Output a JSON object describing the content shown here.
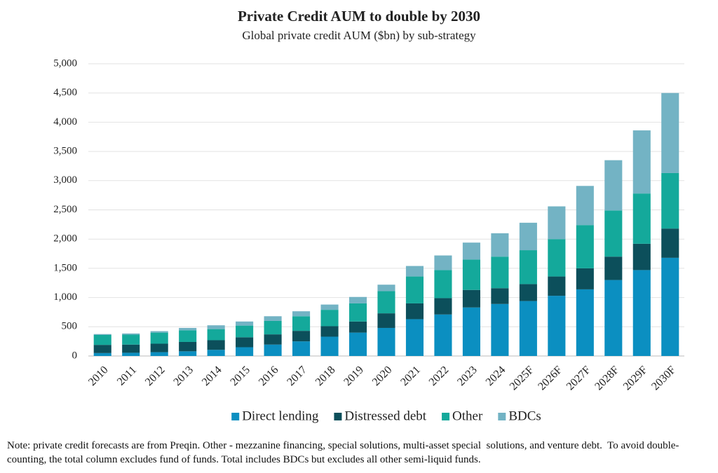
{
  "chart_data": {
    "type": "stacked_bar",
    "title": "Private Credit AUM to double by 2030",
    "subtitle": "Global private credit AUM ($bn) by sub-strategy",
    "categories": [
      "2010",
      "2011",
      "2012",
      "2013",
      "2014",
      "2015",
      "2016",
      "2017",
      "2018",
      "2019",
      "2020",
      "2021",
      "2022",
      "2023",
      "2024",
      "2025F",
      "2026F",
      "2027F",
      "2028F",
      "2029F",
      "2030F"
    ],
    "series": [
      {
        "name": "Direct lending",
        "color": "#0b8fc1",
        "values": [
          50,
          55,
          65,
          80,
          105,
          150,
          195,
          250,
          330,
          400,
          480,
          630,
          710,
          830,
          890,
          940,
          1030,
          1140,
          1300,
          1470,
          1680
        ]
      },
      {
        "name": "Distressed debt",
        "color": "#0c4f5b",
        "values": [
          140,
          140,
          145,
          160,
          165,
          170,
          175,
          180,
          180,
          190,
          250,
          270,
          280,
          300,
          270,
          290,
          330,
          360,
          400,
          450,
          500
        ]
      },
      {
        "name": "Other",
        "color": "#14a99b",
        "values": [
          170,
          170,
          190,
          200,
          190,
          200,
          230,
          250,
          280,
          310,
          380,
          460,
          480,
          520,
          540,
          580,
          640,
          740,
          790,
          860,
          950
        ]
      },
      {
        "name": "BDCs",
        "color": "#73b3c4",
        "values": [
          15,
          20,
          25,
          40,
          65,
          70,
          80,
          85,
          90,
          110,
          110,
          180,
          250,
          290,
          400,
          470,
          560,
          670,
          860,
          1080,
          1370
        ]
      }
    ],
    "ylim": [
      0,
      5000
    ],
    "yticks": [
      0,
      {
        "value": 500,
        "label": "500"
      },
      {
        "value": 1000,
        "label": "1,000"
      },
      {
        "value": 1500,
        "label": "1,500"
      },
      {
        "value": 2000,
        "label": "2,000"
      },
      {
        "value": 2500,
        "label": "2,500"
      },
      {
        "value": 3000,
        "label": "3,000"
      },
      {
        "value": 3500,
        "label": "3,500"
      },
      {
        "value": 4000,
        "label": "4,000"
      },
      {
        "value": 4500,
        "label": "4,500"
      },
      {
        "value": 5000,
        "label": "5,000"
      }
    ],
    "grid": true,
    "legend": "bottom",
    "note": "Note: private credit forecasts are from Preqin. Other - mezzanine financing, special solutions, multi-asset special  solutions, and venture debt.  To avoid double-counting, the total column excludes fund of funds. Total includes BDCs but excludes all other semi-liquid funds."
  }
}
